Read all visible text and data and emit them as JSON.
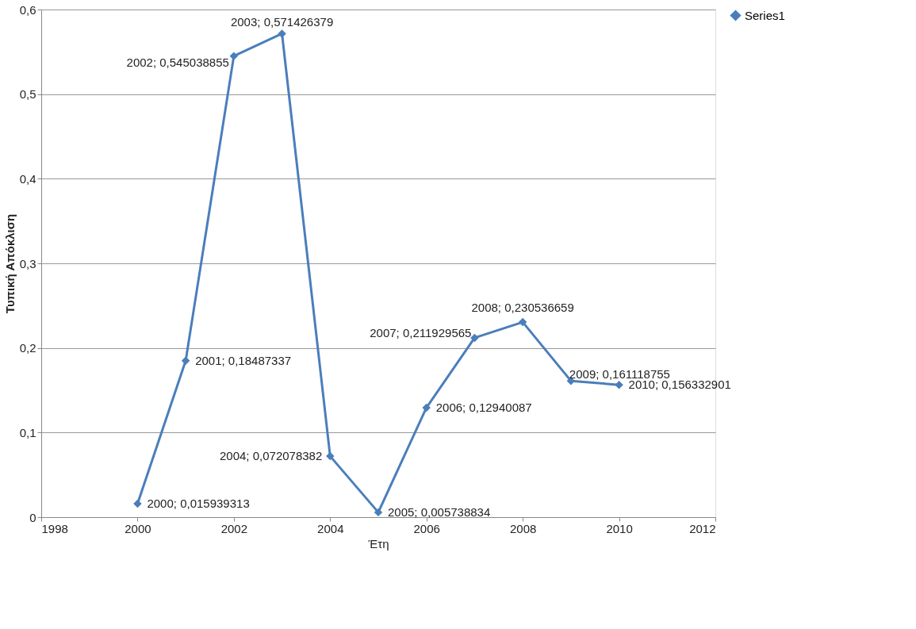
{
  "chart_data": {
    "type": "line",
    "xlabel": "Έτη",
    "ylabel": "Τυπική Απόκλιση",
    "x": [
      2000,
      2001,
      2002,
      2003,
      2004,
      2005,
      2006,
      2007,
      2008,
      2009,
      2010
    ],
    "series": [
      {
        "name": "Series1",
        "color": "#4a7ebb",
        "values": [
          0.015939313,
          0.18487337,
          0.545038855,
          0.571426379,
          0.072078382,
          0.005738834,
          0.12940087,
          0.211929565,
          0.230536659,
          0.161118755,
          0.156332901
        ],
        "value_labels": [
          "2000; 0,015939313",
          "2001; 0,18487337",
          "2002; 0,545038855",
          "2003; 0,571426379",
          "2004; 0,072078382",
          "2005; 0,005738834",
          "2006; 0,12940087",
          "2007; 0,211929565",
          "2008; 0,230536659",
          "2009; 0,161118755",
          "2010; 0,156332901"
        ]
      }
    ],
    "xlim": [
      1998,
      2012
    ],
    "xticks": [
      1998,
      2000,
      2002,
      2004,
      2006,
      2008,
      2010,
      2012
    ],
    "ylim": [
      0,
      0.6
    ],
    "yticks": [
      0,
      {
        "value": 0.1,
        "label": "0,1"
      },
      {
        "value": 0.2,
        "label": "0,2"
      },
      {
        "value": 0.3,
        "label": "0,3"
      },
      {
        "value": 0.4,
        "label": "0,4"
      },
      {
        "value": 0.5,
        "label": "0,5"
      },
      {
        "value": 0.6,
        "label": "0,6"
      }
    ],
    "grid": "y",
    "legend": "right",
    "marker": "diamond",
    "line_style": "solid"
  }
}
